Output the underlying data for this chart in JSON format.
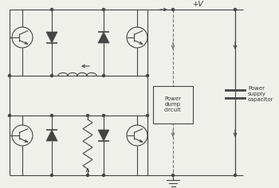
{
  "bg_color": "#f0f0eb",
  "line_color": "#444444",
  "text_color": "#333333",
  "fig_width": 3.5,
  "fig_height": 2.36,
  "dpi": 100,
  "plus_v_label": "+V",
  "pdc_label": "Power\ndump\ncircuit",
  "cap_label": "Power\nsupply\ncapacitor",
  "ground_label": ""
}
